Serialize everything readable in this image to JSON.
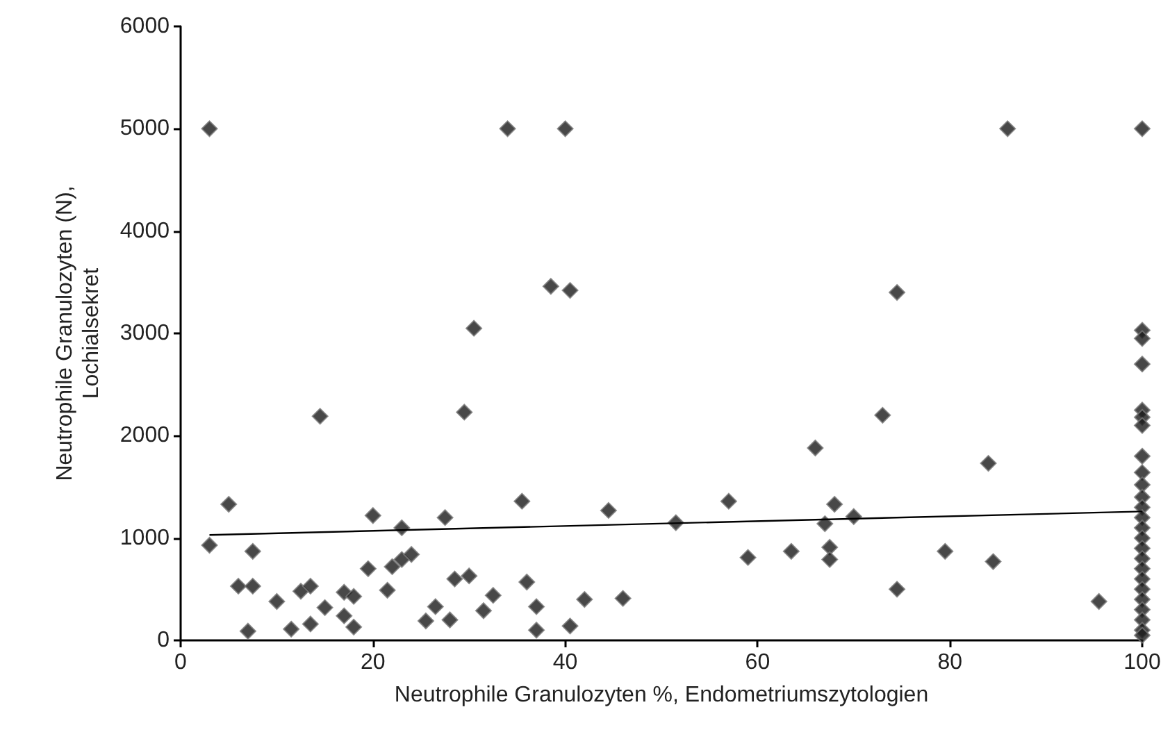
{
  "chart_data": {
    "type": "scatter",
    "xlabel": "Neutrophile Granulozyten %, Endometriumszytologien",
    "ylabel": "Neutrophile Granulozyten (N),\nLochialsekret",
    "xlim": [
      0,
      100
    ],
    "xticks": [
      0,
      20,
      40,
      60,
      80,
      100
    ],
    "ylim": [
      0,
      6000
    ],
    "yticks": [
      0,
      1000,
      2000,
      3000,
      4000,
      5000,
      6000
    ],
    "grid": false,
    "marker": "diamond",
    "series": [
      {
        "color": "#1a1a1a",
        "x": [
          3,
          3,
          5,
          6,
          7,
          7.5,
          7.5,
          10,
          11.5,
          12.5,
          13.5,
          13.5,
          14.5,
          15,
          17,
          17,
          18,
          18,
          19.5,
          20,
          21.5,
          22,
          23,
          23,
          24,
          25.5,
          26.5,
          27.5,
          28,
          28.5,
          29.5,
          30,
          30.5,
          31.5,
          32.5,
          34,
          35.5,
          36,
          37,
          37,
          38.5,
          40,
          40.5,
          40.5,
          42,
          44.5,
          46,
          51.5,
          57,
          59,
          63.5,
          66,
          67,
          67.5,
          67.5,
          68,
          70,
          73,
          74.5,
          74.5,
          79.5,
          84,
          84.5,
          86,
          95.5,
          100,
          100,
          100,
          100,
          100,
          100,
          100,
          100,
          100,
          100,
          100,
          100,
          100,
          100,
          100,
          100,
          100,
          100,
          100,
          100,
          100,
          100,
          100,
          100,
          100
        ],
        "values": [
          5000,
          930,
          1330,
          530,
          90,
          530,
          870,
          380,
          110,
          480,
          160,
          530,
          2190,
          320,
          470,
          240,
          430,
          130,
          700,
          1220,
          490,
          720,
          1100,
          790,
          840,
          190,
          330,
          1200,
          200,
          600,
          2230,
          630,
          3050,
          290,
          440,
          5000,
          1360,
          570,
          330,
          100,
          3460,
          5000,
          3420,
          140,
          400,
          1270,
          410,
          1150,
          1360,
          810,
          870,
          1880,
          1140,
          910,
          790,
          1330,
          1210,
          2200,
          3400,
          500,
          870,
          1730,
          770,
          5000,
          380,
          5000,
          3030,
          2950,
          2700,
          2250,
          2180,
          2100,
          1800,
          1640,
          1520,
          1400,
          1300,
          1200,
          1100,
          1000,
          900,
          800,
          700,
          600,
          500,
          400,
          300,
          200,
          100,
          50
        ]
      },
      {
        "type": "line",
        "color": "#000000",
        "marker": "none",
        "x": [
          3,
          100
        ],
        "values": [
          1030,
          1260
        ]
      }
    ]
  }
}
